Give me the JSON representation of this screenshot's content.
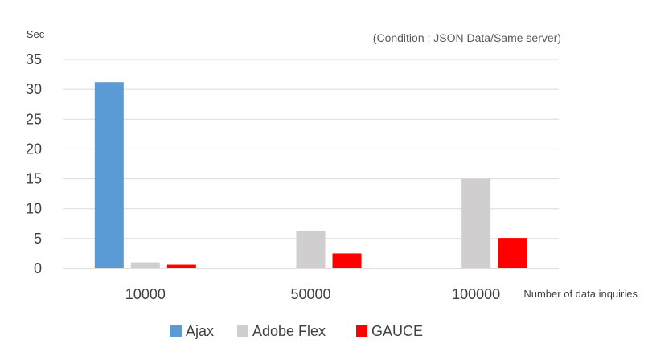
{
  "chart_data": {
    "type": "bar",
    "title": "",
    "annotation": "(Condition : JSON Data/Same server)",
    "ylabel": "Sec",
    "xlabel": "Number of data inquiries",
    "ylim": [
      0,
      35
    ],
    "yticks": [
      0,
      5,
      10,
      15,
      20,
      25,
      30,
      35
    ],
    "grid": true,
    "legend_position": "bottom",
    "categories": [
      "10000",
      "50000",
      "100000"
    ],
    "series": [
      {
        "name": "Ajax",
        "color": "#5B9BD5",
        "values": [
          31.2,
          0,
          0
        ]
      },
      {
        "name": "Adobe Flex",
        "color": "#D0CECE",
        "values": [
          1.0,
          6.3,
          15.0
        ]
      },
      {
        "name": "GAUCE",
        "color": "#FF0000",
        "values": [
          0.6,
          2.5,
          5.1
        ]
      }
    ]
  }
}
